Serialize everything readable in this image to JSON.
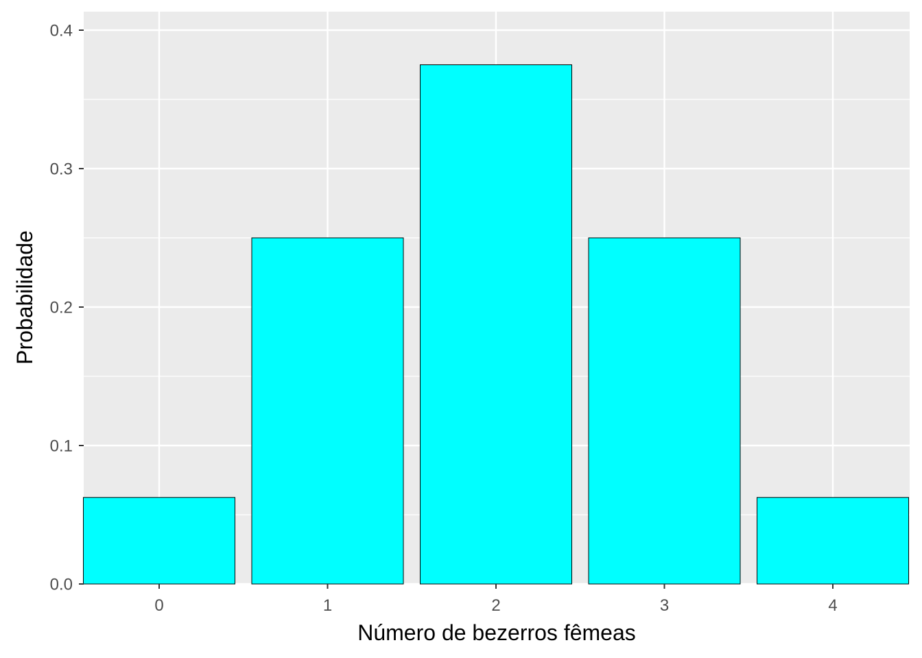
{
  "chart_data": {
    "type": "bar",
    "title": "",
    "xlabel": "Número de bezerros fêmeas",
    "ylabel": "Probabilidade",
    "categories": [
      "0",
      "1",
      "2",
      "3",
      "4"
    ],
    "values": [
      0.0625,
      0.25,
      0.375,
      0.25,
      0.0625
    ],
    "ylim": [
      0,
      0.4
    ],
    "yticks": [
      0.0,
      0.1,
      0.2,
      0.3,
      0.4
    ],
    "ytick_labels": [
      "0.0",
      "0.1",
      "0.2",
      "0.3",
      "0.4"
    ],
    "grid": true,
    "legend": "none",
    "colors": {
      "bar_fill": "#00FFFF",
      "bar_stroke": "#000000",
      "panel_background": "#EBEBEB",
      "grid": "#FFFFFF",
      "tick_text": "#4D4D4D"
    }
  }
}
